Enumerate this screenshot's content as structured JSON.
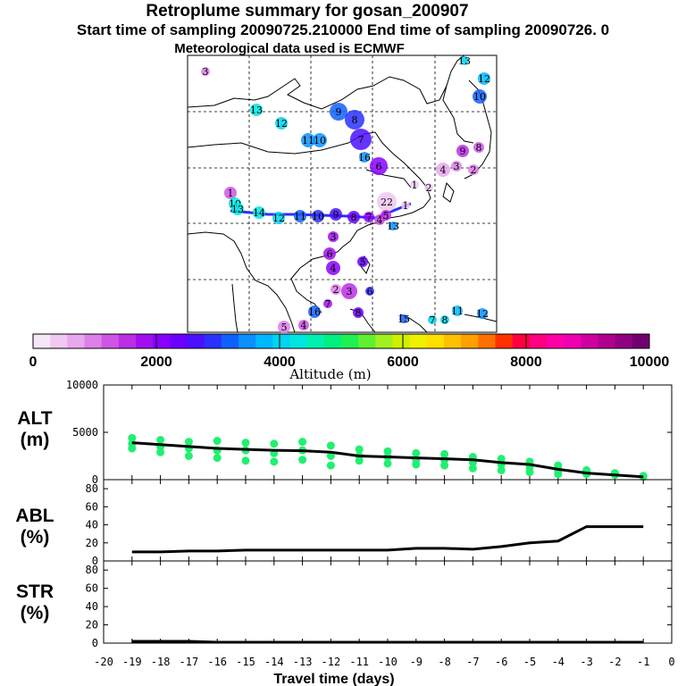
{
  "header": {
    "title": "Retroplume summary for gosan_200907",
    "subtitle": "Start time of sampling 20090725.210000      End time of sampling 20090726.      0",
    "met_note": "Meteorological data used is ECMWF"
  },
  "colorbar": {
    "ticks": [
      "0",
      "2000",
      "4000",
      "6000",
      "8000",
      "10000"
    ],
    "label": "Altitude (m)",
    "colors": [
      "#f7e6f7",
      "#f0c8f0",
      "#e8a8ee",
      "#dd80ea",
      "#cf55e6",
      "#bb2ee6",
      "#a010ee",
      "#8a00ff",
      "#6a00ff",
      "#4a10ff",
      "#2a30ff",
      "#1060ff",
      "#0a90ff",
      "#00b8ff",
      "#00d4f0",
      "#00e6e0",
      "#00f0b0",
      "#00f080",
      "#20f050",
      "#60f030",
      "#a0f020",
      "#d0f000",
      "#f0f000",
      "#ffe000",
      "#ffc000",
      "#ffa000",
      "#ff7000",
      "#ff3000",
      "#ff0040",
      "#ff0080",
      "#ff00a8",
      "#f000b0",
      "#d000a0",
      "#b00090",
      "#900080",
      "#700070"
    ]
  },
  "map_labels": [
    {
      "t": "13",
      "c": "#00d4f0"
    },
    {
      "t": "12",
      "c": "#00b8ff"
    },
    {
      "t": "10",
      "c": "#1060ff"
    },
    {
      "t": "13",
      "c": "#00e6e0"
    },
    {
      "t": "12",
      "c": "#00d4f0"
    },
    {
      "t": "9",
      "c": "#1060ff"
    },
    {
      "t": "8",
      "c": "#2a30ff"
    },
    {
      "t": "11",
      "c": "#0a90ff"
    },
    {
      "t": "10",
      "c": "#0a90ff"
    },
    {
      "t": "7",
      "c": "#4a10ff"
    },
    {
      "t": "16",
      "c": "#0a90ff"
    },
    {
      "t": "6",
      "c": "#8a00ff"
    },
    {
      "t": "4",
      "c": "#e8a8ee"
    },
    {
      "t": "3",
      "c": "#dd80ea"
    },
    {
      "t": "2",
      "c": "#dd80ea"
    },
    {
      "t": "9",
      "c": "#bb2ee6"
    },
    {
      "t": "8",
      "c": "#cf55e6"
    },
    {
      "t": "1",
      "c": "#f0c8f0"
    },
    {
      "t": "2",
      "c": "#f0c8f0"
    },
    {
      "t": "22",
      "c": "#f0c8f0"
    },
    {
      "t": "1",
      "c": "#f0c8f0"
    },
    {
      "t": "4",
      "c": "#cf55e6"
    },
    {
      "t": "3",
      "c": "#a010ee"
    },
    {
      "t": "6",
      "c": "#a010ee"
    },
    {
      "t": "4",
      "c": "#8a00ff"
    },
    {
      "t": "5",
      "c": "#6a00ff"
    },
    {
      "t": "2",
      "c": "#dd80ea"
    },
    {
      "t": "3",
      "c": "#bb2ee6"
    },
    {
      "t": "6",
      "c": "#2a30ff"
    },
    {
      "t": "16",
      "c": "#1060ff"
    },
    {
      "t": "7",
      "c": "#a010ee"
    },
    {
      "t": "4",
      "c": "#cf55e6"
    },
    {
      "t": "5",
      "c": "#dd80ea"
    },
    {
      "t": "8",
      "c": "#6a00ff"
    },
    {
      "t": "15",
      "c": "#1060ff"
    },
    {
      "t": "7",
      "c": "#00d4f0"
    },
    {
      "t": "8",
      "c": "#00d4f0"
    },
    {
      "t": "11",
      "c": "#00b8ff"
    },
    {
      "t": "12",
      "c": "#0a90ff"
    },
    {
      "t": "13",
      "c": "#0a90ff"
    },
    {
      "t": "1",
      "c": "#cf55e6"
    },
    {
      "t": "10",
      "c": "#00e6e0"
    },
    {
      "t": "13",
      "c": "#00e6e0"
    },
    {
      "t": "14",
      "c": "#00e6e0"
    },
    {
      "t": "12",
      "c": "#00d4f0"
    },
    {
      "t": "11",
      "c": "#1060ff"
    },
    {
      "t": "10",
      "c": "#2a30ff"
    },
    {
      "t": "9",
      "c": "#4a10ff"
    },
    {
      "t": "8",
      "c": "#6a00ff"
    },
    {
      "t": "7",
      "c": "#8a00ff"
    },
    {
      "t": "5",
      "c": "#bb2ee6"
    },
    {
      "t": "3",
      "c": "#dd80ea"
    }
  ],
  "chart_data": [
    {
      "type": "scatter",
      "name": "altitude",
      "ylabel": "ALT",
      "yunit": "(m)",
      "ylim": [
        0,
        10000
      ],
      "yticks": [
        0,
        5000,
        10000
      ],
      "xlim": [
        -20,
        0
      ],
      "point_color": "#20f070",
      "line_color": "#000000",
      "points": [
        [
          -19,
          4400
        ],
        [
          -19,
          3800
        ],
        [
          -19,
          3300
        ],
        [
          -18,
          4200
        ],
        [
          -18,
          3500
        ],
        [
          -18,
          2900
        ],
        [
          -17,
          4000
        ],
        [
          -17,
          3300
        ],
        [
          -17,
          2500
        ],
        [
          -16,
          4100
        ],
        [
          -16,
          3100
        ],
        [
          -16,
          2300
        ],
        [
          -15,
          3900
        ],
        [
          -15,
          3100
        ],
        [
          -15,
          2000
        ],
        [
          -14,
          3800
        ],
        [
          -14,
          2800
        ],
        [
          -14,
          1900
        ],
        [
          -13,
          4000
        ],
        [
          -13,
          3100
        ],
        [
          -13,
          2100
        ],
        [
          -12,
          3600
        ],
        [
          -12,
          2500
        ],
        [
          -12,
          1500
        ],
        [
          -11,
          3200
        ],
        [
          -11,
          2500
        ],
        [
          -11,
          2000
        ],
        [
          -10,
          3000
        ],
        [
          -10,
          2400
        ],
        [
          -10,
          1700
        ],
        [
          -9,
          2800
        ],
        [
          -9,
          2100
        ],
        [
          -9,
          1600
        ],
        [
          -8,
          2700
        ],
        [
          -8,
          2100
        ],
        [
          -8,
          1500
        ],
        [
          -7,
          2400
        ],
        [
          -7,
          1800
        ],
        [
          -7,
          1200
        ],
        [
          -6,
          2200
        ],
        [
          -6,
          1600
        ],
        [
          -6,
          1000
        ],
        [
          -5,
          1900
        ],
        [
          -5,
          1300
        ],
        [
          -5,
          800
        ],
        [
          -4,
          1500
        ],
        [
          -4,
          1000
        ],
        [
          -4,
          600
        ],
        [
          -3,
          1000
        ],
        [
          -3,
          600
        ],
        [
          -2,
          700
        ],
        [
          -2,
          500
        ],
        [
          -1,
          400
        ],
        [
          -1,
          300
        ]
      ],
      "mean_line": {
        "x": [
          -19,
          -18,
          -17,
          -16,
          -15,
          -14,
          -13,
          -12,
          -11,
          -10,
          -9,
          -8,
          -7,
          -6,
          -5,
          -4,
          -3,
          -2,
          -1
        ],
        "y": [
          3900,
          3700,
          3500,
          3300,
          3200,
          3100,
          3050,
          2900,
          2500,
          2400,
          2300,
          2200,
          2100,
          1800,
          1600,
          1100,
          700,
          500,
          300
        ]
      }
    },
    {
      "type": "line",
      "name": "abl",
      "ylabel": "ABL",
      "yunit": "(%)",
      "ylim": [
        0,
        90
      ],
      "yticks": [
        0,
        20,
        40,
        60,
        80
      ],
      "xlim": [
        -20,
        0
      ],
      "x": [
        -19,
        -18,
        -17,
        -16,
        -15,
        -14,
        -13,
        -12,
        -11,
        -10,
        -9,
        -8,
        -7,
        -6,
        -5,
        -4,
        -3,
        -2,
        -1
      ],
      "y": [
        10,
        10,
        11,
        11,
        12,
        12,
        12,
        12,
        12,
        12,
        14,
        14,
        13,
        16,
        20,
        22,
        38,
        38,
        38
      ]
    },
    {
      "type": "line",
      "name": "str",
      "ylabel": "STR",
      "yunit": "(%)",
      "ylim": [
        0,
        90
      ],
      "yticks": [
        0,
        20,
        40,
        60,
        80
      ],
      "xlim": [
        -20,
        0
      ],
      "xlabel": "Travel time (days)",
      "xticks": [
        -20,
        -19,
        -18,
        -17,
        -16,
        -15,
        -14,
        -13,
        -12,
        -11,
        -10,
        -9,
        -8,
        -7,
        -6,
        -5,
        -4,
        -3,
        -2,
        -1,
        0
      ],
      "x": [
        -19,
        -18,
        -17,
        -16,
        -15,
        -14,
        -13,
        -12,
        -11,
        -10,
        -9,
        -8,
        -7,
        -6,
        -5,
        -4,
        -3,
        -2,
        -1
      ],
      "y": [
        2,
        2,
        2,
        1,
        1,
        1,
        1,
        1,
        1,
        1,
        1,
        1,
        1,
        1,
        1,
        1,
        1,
        1,
        1
      ]
    }
  ]
}
